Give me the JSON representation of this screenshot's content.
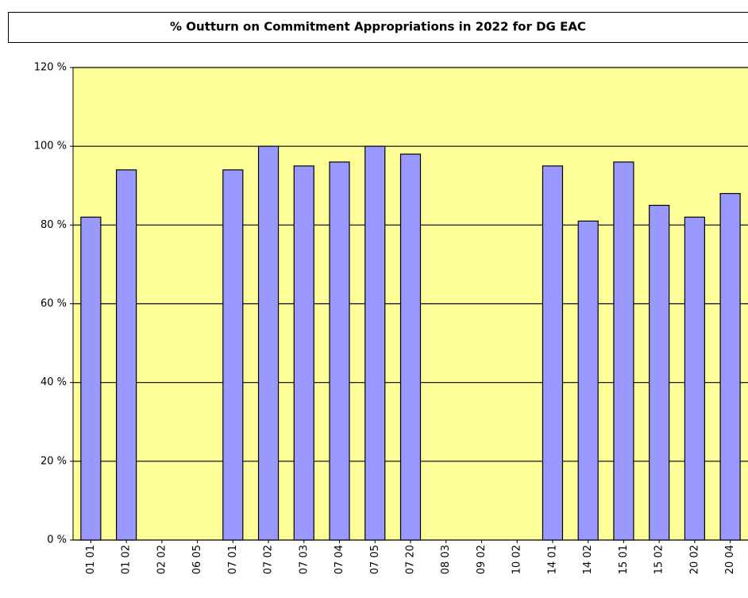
{
  "chart_data": {
    "type": "bar",
    "title": "% Outturn on Commitment Appropriations in 2022 for DG EAC",
    "categories": [
      "01 01",
      "01 02",
      "02 02",
      "06 05",
      "07 01",
      "07 02",
      "07 03",
      "07 04",
      "07 05",
      "07 20",
      "08 03",
      "09 02",
      "10 02",
      "14 01",
      "14 02",
      "15 01",
      "15 02",
      "20 02",
      "20 04"
    ],
    "values": [
      82,
      94,
      null,
      null,
      94,
      100,
      95,
      96,
      100,
      98,
      null,
      null,
      null,
      95,
      81,
      96,
      85,
      82,
      88
    ],
    "color": "#9999ff",
    "background": "#ffff99",
    "ylim": [
      0,
      120
    ],
    "yticks": [
      {
        "value": 0,
        "label": "0 %"
      },
      {
        "value": 20,
        "label": "20 %"
      },
      {
        "value": 40,
        "label": "40 %"
      },
      {
        "value": 60,
        "label": "60 %"
      },
      {
        "value": 80,
        "label": "80 %"
      },
      {
        "value": 100,
        "label": "100 %"
      },
      {
        "value": 120,
        "label": "120 %"
      }
    ],
    "grid": true
  }
}
